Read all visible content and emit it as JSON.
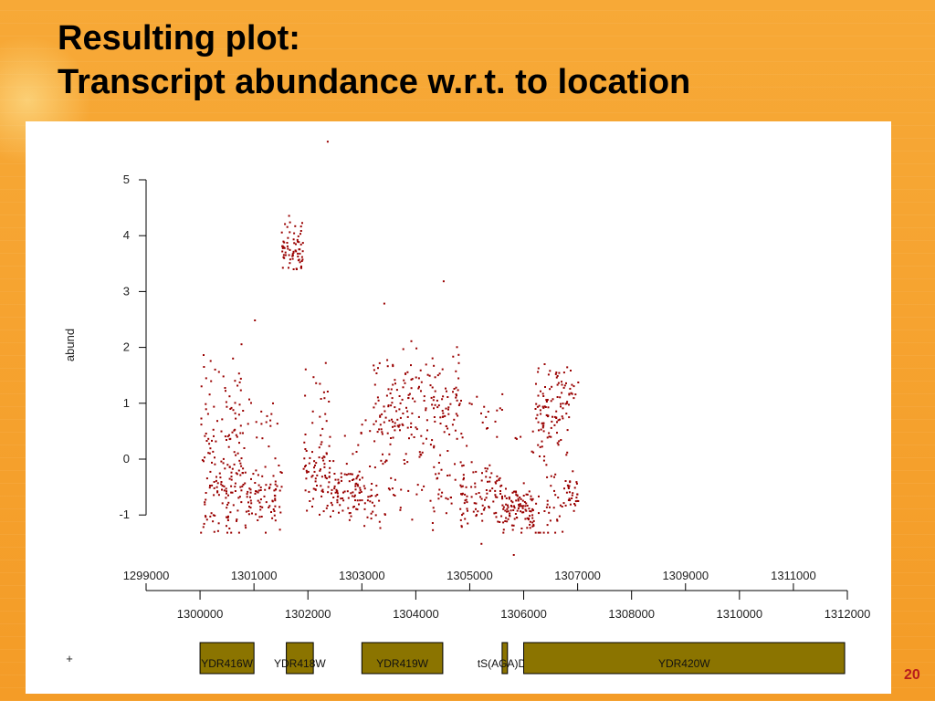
{
  "slide": {
    "title_line1": "Resulting plot:",
    "title_line2": "Transcript abundance w.r.t. to location",
    "page_number": "20"
  },
  "colors": {
    "background": "#f6a531",
    "points": "#990000",
    "gene_box": "#8b7400",
    "slide_number": "#b71c1c"
  },
  "chart_data": {
    "type": "scatter",
    "ylabel": "abund",
    "ylim": [
      -1.2,
      5.7
    ],
    "yticks": [
      -1,
      0,
      1,
      2,
      3,
      4,
      5
    ],
    "ytick_labels": [
      "-1",
      "0",
      "1",
      "2",
      "3",
      "4",
      "5"
    ],
    "xlim": [
      1299000,
      1312000
    ],
    "xticks_upper": [
      1299000,
      1301000,
      1303000,
      1305000,
      1307000,
      1309000,
      1311000
    ],
    "xtick_labels_upper": [
      "1299000",
      "1301000",
      "1303000",
      "1305000",
      "1307000",
      "1309000",
      "1311000"
    ],
    "xticks_lower": [
      1300000,
      1302000,
      1304000,
      1306000,
      1308000,
      1310000,
      1312000
    ],
    "xtick_labels_lower": [
      "1300000",
      "1302000",
      "1304000",
      "1306000",
      "1308000",
      "1310000",
      "1312000"
    ],
    "grid": false,
    "series": [
      {
        "segments": [
          {
            "x_range": [
              1300000,
              1300800
            ],
            "center": -0.4,
            "spread": 1.0,
            "n": 180,
            "high_frac": 0.3,
            "high_center": 1.0
          },
          {
            "x_range": [
              1300800,
              1301500
            ],
            "center": -0.6,
            "spread": 0.6,
            "n": 100,
            "high_frac": 0.1,
            "high_center": 0.5
          },
          {
            "x_range": [
              1301500,
              1301900
            ],
            "center": 3.8,
            "spread": 0.5,
            "n": 70,
            "high_frac": 0.0,
            "high_center": 0
          },
          {
            "x_range": [
              1301900,
              1302400
            ],
            "center": -0.3,
            "spread": 0.7,
            "n": 90,
            "high_frac": 0.2,
            "high_center": 1.0
          },
          {
            "x_range": [
              1302400,
              1303200
            ],
            "center": -0.6,
            "spread": 0.5,
            "n": 110,
            "high_frac": 0.1,
            "high_center": 0.5
          },
          {
            "x_range": [
              1303200,
              1304800
            ],
            "center": 1.0,
            "spread": 0.9,
            "n": 260,
            "high_frac": 0.25,
            "high_center": -0.4
          },
          {
            "x_range": [
              1304800,
              1305600
            ],
            "center": -0.6,
            "spread": 0.6,
            "n": 120,
            "high_frac": 0.2,
            "high_center": 0.8
          },
          {
            "x_range": [
              1305600,
              1306200
            ],
            "center": -0.9,
            "spread": 0.4,
            "n": 110,
            "high_frac": 0.05,
            "high_center": 0.3
          },
          {
            "x_range": [
              1306200,
              1306800
            ],
            "center": 1.0,
            "spread": 0.8,
            "n": 140,
            "high_frac": 0.3,
            "high_center": -0.7
          },
          {
            "x_range": [
              1306800,
              1307000
            ],
            "center": -0.6,
            "spread": 0.4,
            "n": 40,
            "high_frac": 0.4,
            "high_center": 1.2
          }
        ],
        "outliers": [
          [
            1302350,
            5.7
          ],
          [
            1303400,
            2.8
          ],
          [
            1304500,
            3.2
          ],
          [
            1305200,
            -1.5
          ],
          [
            1305800,
            -1.7
          ],
          [
            1301000,
            2.5
          ],
          [
            1301200,
            -1.3
          ]
        ]
      }
    ]
  },
  "gene_track": {
    "strand": "+",
    "genes": [
      {
        "name": "YDR416W",
        "start": 1300000,
        "end": 1301000
      },
      {
        "name": "YDR418W",
        "start": 1301600,
        "end": 1302100
      },
      {
        "name": "YDR419W",
        "start": 1303000,
        "end": 1304500
      },
      {
        "name": "tS(AGA)D3",
        "start": 1305600,
        "end": 1305700
      },
      {
        "name": "YDR420W",
        "start": 1306000,
        "end": 1311950
      }
    ]
  }
}
